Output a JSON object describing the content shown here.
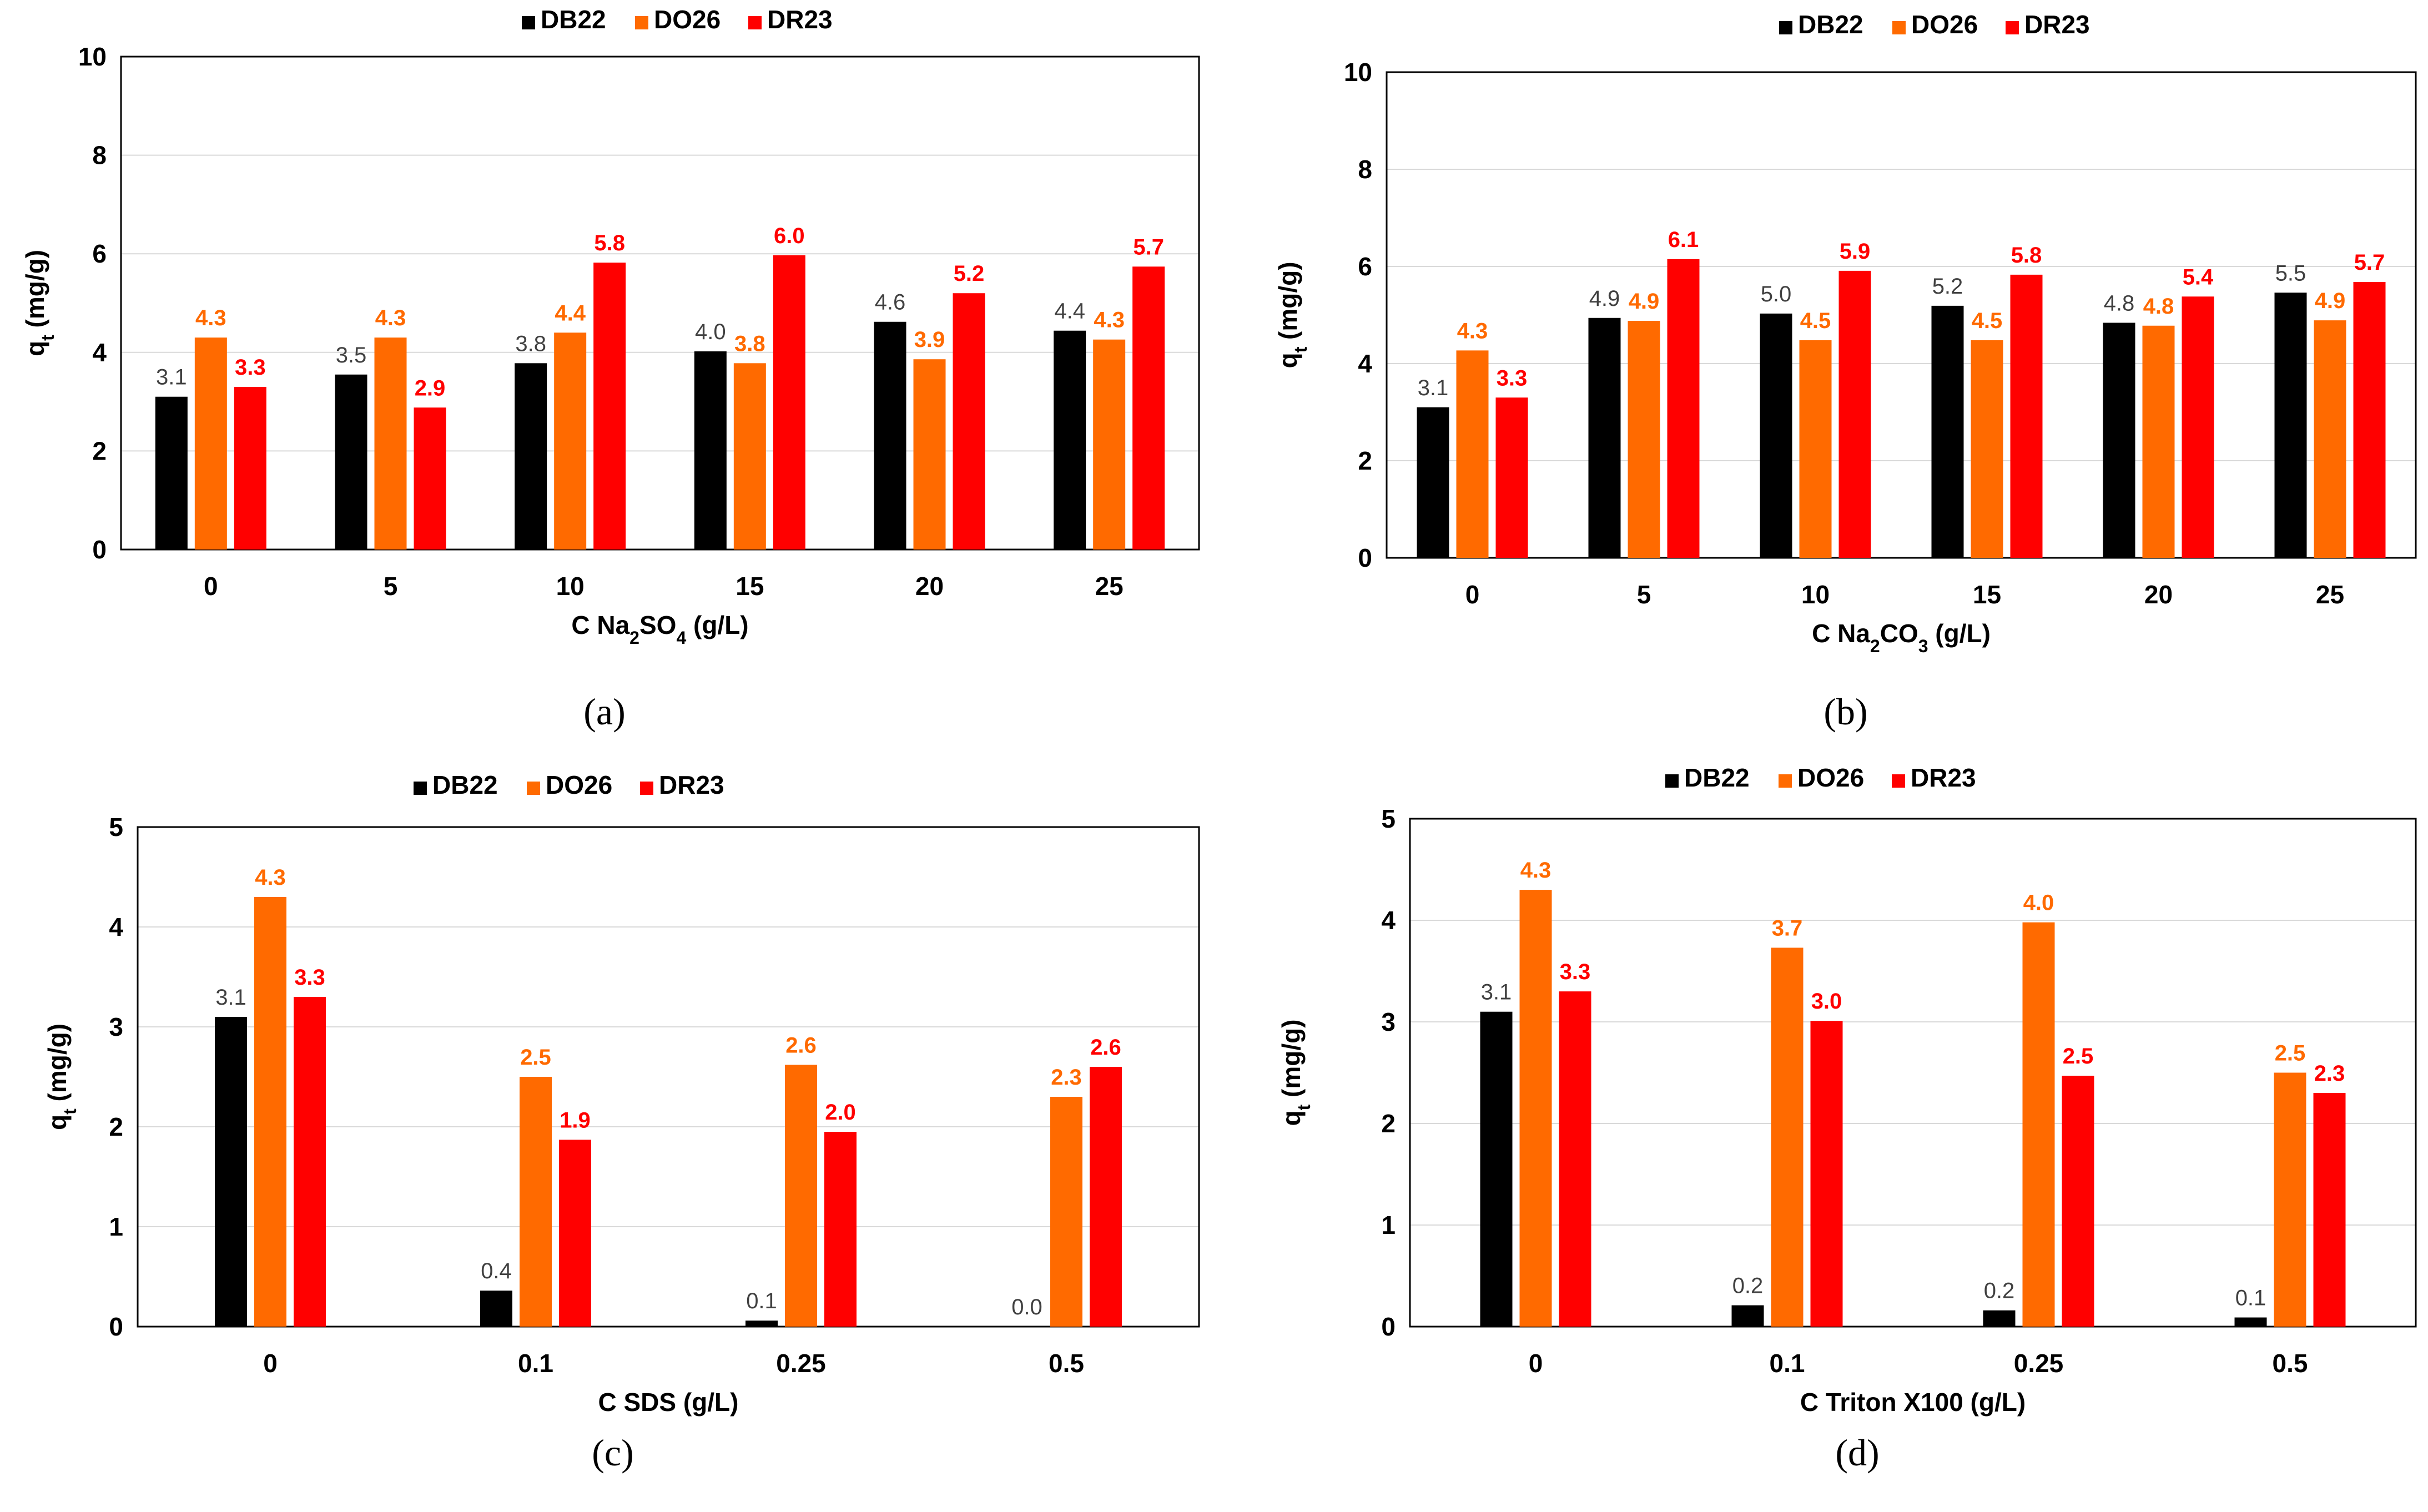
{
  "colors": {
    "DB22": "#000000",
    "DO26": "#FF6A00",
    "DR23": "#FF0000",
    "label_DB22": "#404040"
  },
  "legend": [
    "DB22",
    "DO26",
    "DR23"
  ],
  "chart_data": [
    {
      "type": "bar",
      "panel": "(a)",
      "ylabel_main": "q",
      "ylabel_sub": "t",
      "ylabel_tail": " (mg/g)",
      "xlabel_parts": [
        [
          "C Na",
          ""
        ],
        [
          "2",
          "sub"
        ],
        [
          "SO",
          ""
        ],
        [
          "4",
          "sub"
        ],
        [
          " (g/L)",
          ""
        ]
      ],
      "ylim": [
        0,
        10
      ],
      "yticks": [
        "0",
        "2",
        "4",
        "6",
        "8",
        "10"
      ],
      "categories": [
        "0",
        "5",
        "10",
        "15",
        "20",
        "25"
      ],
      "series": [
        {
          "name": "DB22",
          "values": [
            3.1,
            3.55,
            3.78,
            4.02,
            4.62,
            4.44
          ],
          "labels": [
            "3.1",
            "3.5",
            "3.8",
            "4.0",
            "4.6",
            "4.4"
          ]
        },
        {
          "name": "DO26",
          "values": [
            4.3,
            4.3,
            4.4,
            3.78,
            3.86,
            4.26
          ],
          "labels": [
            "4.3",
            "4.3",
            "4.4",
            "3.8",
            "3.9",
            "4.3"
          ]
        },
        {
          "name": "DR23",
          "values": [
            3.3,
            2.88,
            5.82,
            5.97,
            5.2,
            5.74
          ],
          "labels": [
            "3.3",
            "2.9",
            "5.8",
            "6.0",
            "5.2",
            "5.7"
          ]
        }
      ],
      "grid": true,
      "legend_position": "top"
    },
    {
      "type": "bar",
      "panel": "(b)",
      "ylabel_main": "q",
      "ylabel_sub": "t",
      "ylabel_tail": " (mg/g)",
      "xlabel_parts": [
        [
          "C Na",
          ""
        ],
        [
          "2",
          "sub"
        ],
        [
          "CO",
          ""
        ],
        [
          "3",
          "sub"
        ],
        [
          " (g/L)",
          ""
        ]
      ],
      "ylim": [
        0,
        10
      ],
      "yticks": [
        "0",
        "2",
        "4",
        "6",
        "8",
        "10"
      ],
      "categories": [
        "0",
        "5",
        "10",
        "15",
        "20",
        "25"
      ],
      "series": [
        {
          "name": "DB22",
          "values": [
            3.1,
            4.94,
            5.03,
            5.19,
            4.84,
            5.46
          ],
          "labels": [
            "3.1",
            "4.9",
            "5.0",
            "5.2",
            "4.8",
            "5.5"
          ]
        },
        {
          "name": "DO26",
          "values": [
            4.27,
            4.88,
            4.48,
            4.48,
            4.78,
            4.89
          ],
          "labels": [
            "4.3",
            "4.9",
            "4.5",
            "4.5",
            "4.8",
            "4.9"
          ]
        },
        {
          "name": "DR23",
          "values": [
            3.3,
            6.15,
            5.91,
            5.83,
            5.38,
            5.68
          ],
          "labels": [
            "3.3",
            "6.1",
            "5.9",
            "5.8",
            "5.4",
            "5.7"
          ]
        }
      ],
      "grid": true,
      "legend_position": "top"
    },
    {
      "type": "bar",
      "panel": "(c)",
      "ylabel_main": "q",
      "ylabel_sub": "t",
      "ylabel_tail": " (mg/g)",
      "xlabel_parts": [
        [
          "C SDS (g/L)",
          ""
        ]
      ],
      "ylim": [
        0,
        5
      ],
      "yticks": [
        "0",
        "1",
        "2",
        "3",
        "4",
        "5"
      ],
      "categories": [
        "0",
        "0.1",
        "0.25",
        "0.5"
      ],
      "series": [
        {
          "name": "DB22",
          "values": [
            3.1,
            0.36,
            0.06,
            0.0
          ],
          "labels": [
            "3.1",
            "0.4",
            "0.1",
            "0.0"
          ]
        },
        {
          "name": "DO26",
          "values": [
            4.3,
            2.5,
            2.62,
            2.3
          ],
          "labels": [
            "4.3",
            "2.5",
            "2.6",
            "2.3"
          ]
        },
        {
          "name": "DR23",
          "values": [
            3.3,
            1.87,
            1.95,
            2.6
          ],
          "labels": [
            "3.3",
            "1.9",
            "2.0",
            "2.6"
          ]
        }
      ],
      "grid": true,
      "legend_position": "top"
    },
    {
      "type": "bar",
      "panel": "(d)",
      "ylabel_main": "q",
      "ylabel_sub": "t",
      "ylabel_tail": " (mg/g)",
      "xlabel_parts": [
        [
          "C Triton X100 (g/L)",
          ""
        ]
      ],
      "ylim": [
        0,
        5
      ],
      "yticks": [
        "0",
        "1",
        "2",
        "3",
        "4",
        "5"
      ],
      "categories": [
        "0",
        "0.1",
        "0.25",
        "0.5"
      ],
      "series": [
        {
          "name": "DB22",
          "values": [
            3.1,
            0.21,
            0.16,
            0.09
          ],
          "labels": [
            "3.1",
            "0.2",
            "0.2",
            "0.1"
          ]
        },
        {
          "name": "DO26",
          "values": [
            4.3,
            3.73,
            3.98,
            2.5
          ],
          "labels": [
            "4.3",
            "3.7",
            "4.0",
            "2.5"
          ]
        },
        {
          "name": "DR23",
          "values": [
            3.3,
            3.01,
            2.47,
            2.3
          ],
          "labels": [
            "3.3",
            "3.0",
            "2.5",
            "2.3"
          ]
        }
      ],
      "grid": true,
      "legend_position": "top"
    }
  ]
}
